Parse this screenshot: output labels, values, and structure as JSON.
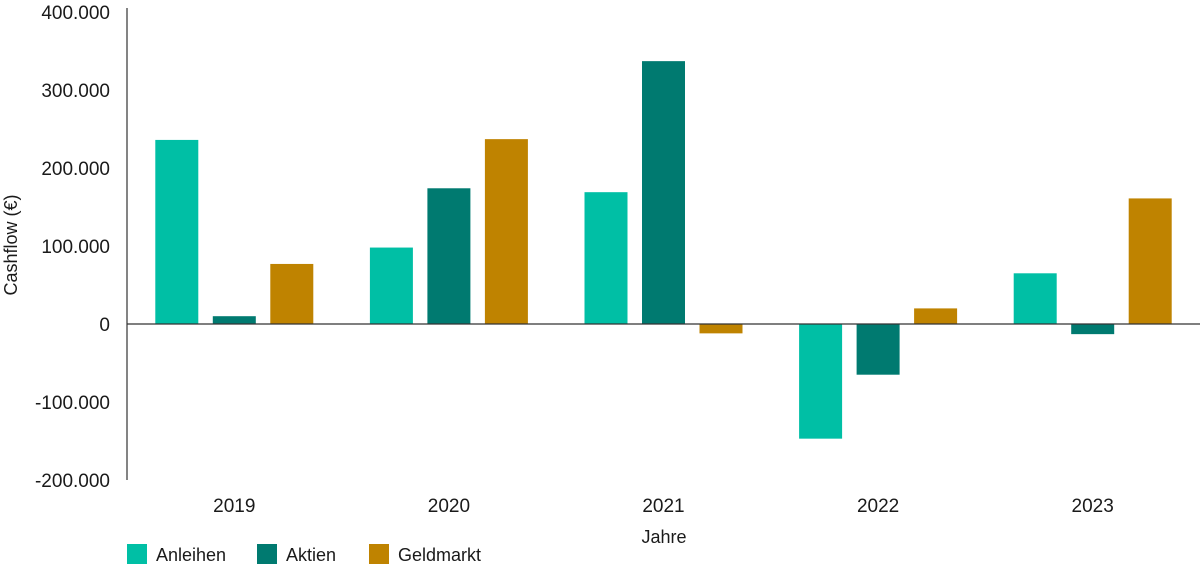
{
  "chart_data": {
    "type": "bar",
    "title": "",
    "xlabel": "Jahre",
    "ylabel": "Cashflow (€)",
    "categories": [
      "2019",
      "2020",
      "2021",
      "2022",
      "2023"
    ],
    "ylim": [
      -200000,
      400000
    ],
    "yticks": [
      400000,
      300000,
      200000,
      100000,
      0,
      -100000,
      -200000
    ],
    "ytick_labels": [
      "400.000",
      "300.000",
      "200.000",
      "100.000",
      "0",
      "-100.000",
      "-200.000"
    ],
    "grid": false,
    "legend_position": "bottom-left",
    "series": [
      {
        "name": "Anleihen",
        "color": "#00BFA5",
        "values": [
          236000,
          98000,
          169000,
          -147000,
          65000
        ]
      },
      {
        "name": "Aktien",
        "color": "#007A70",
        "values": [
          10000,
          174000,
          337000,
          -65000,
          -13000
        ]
      },
      {
        "name": "Geldmarkt",
        "color": "#BF8300",
        "values": [
          77000,
          237000,
          -12000,
          20000,
          161000
        ]
      }
    ]
  }
}
